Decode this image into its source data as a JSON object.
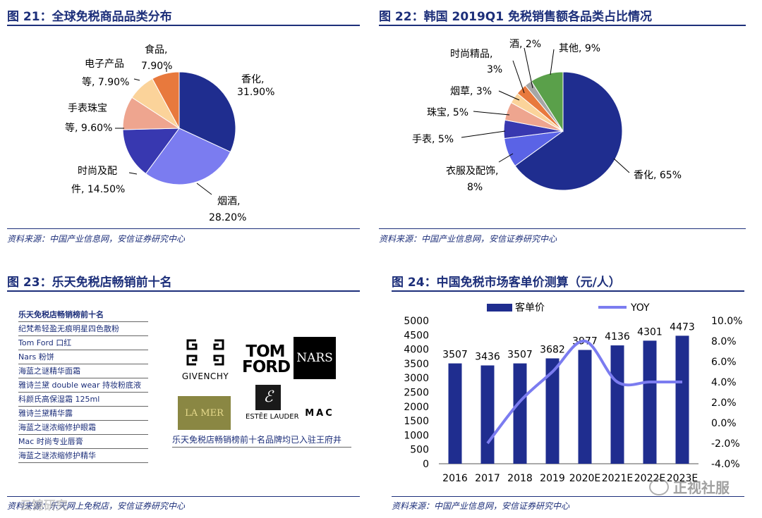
{
  "fig21": {
    "title": "图 21：全球免税商品品类分布",
    "source": "资料来源：中国产业信息网，安信证券研究中心",
    "labels": [
      "香化,",
      "31.90%",
      "烟酒,",
      "28.20%",
      "时尚及配",
      "件, 14.50%",
      "手表珠宝",
      "等, 9.60%",
      "电子产品",
      "等, 7.90%",
      "食品,",
      "7.90%"
    ]
  },
  "fig22": {
    "title": "图 22：韩国 2019Q1 免税销售额各品类占比情况",
    "source": "资料来源：中国产业信息网，安信证券研究中心",
    "labels": [
      "香化, 65%",
      "衣服及配饰,",
      "8%",
      "手表, 5%",
      "珠宝, 5%",
      "烟草, 3%",
      "时尚精品,",
      "3%",
      "酒, 2%",
      "其他, 9%"
    ]
  },
  "fig23": {
    "title": "图 23：乐天免税店畅销前十名",
    "source": "资料来源：乐天网上免税店，安信证券研究中心",
    "list_header": "乐天免税店畅销榜前十名",
    "list_items": [
      "纪梵希轻盈无痕明星四色散粉",
      "Tom Ford 口红",
      "Nars 粉饼",
      "海蓝之谜精华面霜",
      "雅诗兰黛 double wear 持妆粉底液",
      "科颜氏高保湿霜 125ml",
      "雅诗兰黛精华露",
      "海蓝之谜浓缩修护眼霜",
      "Mac 时尚专业唇膏",
      "海蓝之谜浓缩修护精华"
    ],
    "logos": {
      "givenchy": "GIVENCHY",
      "tomford_1": "TOM",
      "tomford_2": "FORD",
      "nars": "NARS",
      "lamer": "LA MER",
      "estee": "ESTĒE LAUDER",
      "mac": "MAC"
    },
    "caption": "乐天免税店畅销榜前十名品牌均已入驻王府井"
  },
  "fig24": {
    "title": "图 24：中国免税市场客单价测算（元/人）",
    "source": "资料来源：中国产业信息网，安信证券研究中心"
  },
  "watermarks": {
    "left": "云锦研究",
    "right": "正视社服"
  },
  "colors": {
    "navy": "#1d2f7a",
    "dark_blue": "#1f2d8f",
    "periwinkle": "#7b7cf0",
    "line": "#7b7cf0",
    "green": "#5aa04a"
  },
  "chart_data": [
    {
      "type": "pie",
      "categories": [
        "香化",
        "烟酒",
        "时尚及配件",
        "手表珠宝等",
        "电子产品等",
        "食品"
      ],
      "values": [
        31.9,
        28.2,
        14.5,
        9.6,
        7.9,
        7.9
      ],
      "colors": [
        "#1f2d8f",
        "#7b7cf0",
        "#3838b0",
        "#eea58f",
        "#fbd39a",
        "#e8793d"
      ],
      "title": "全球免税商品品类分布"
    },
    {
      "type": "pie",
      "categories": [
        "香化",
        "衣服及配饰",
        "手表",
        "珠宝",
        "烟草",
        "时尚精品",
        "酒",
        "其他"
      ],
      "values": [
        65,
        8,
        5,
        5,
        3,
        3,
        2,
        9
      ],
      "colors": [
        "#1f2d8f",
        "#5a63e6",
        "#3838b0",
        "#eea58f",
        "#fbd39a",
        "#e8793d",
        "#a6a6a6",
        "#5aa04a"
      ],
      "title": "韩国 2019Q1 免税销售额各品类占比情况"
    },
    {
      "type": "bar",
      "title": "中国免税市场客单价测算（元/人）",
      "categories": [
        "2016",
        "2017",
        "2018",
        "2019",
        "2020E",
        "2021E",
        "2022E",
        "2023E"
      ],
      "series": [
        {
          "name": "客单价",
          "type": "bar",
          "values": [
            3507,
            3436,
            3507,
            3682,
            3977,
            4136,
            4301,
            4473
          ],
          "color": "#1f2d8f"
        },
        {
          "name": "YOY",
          "type": "line",
          "axis": "right",
          "values": [
            null,
            -2.0,
            2.1,
            5.0,
            8.0,
            4.0,
            4.0,
            4.0
          ],
          "color": "#7b7cf0"
        }
      ],
      "y_left": {
        "min": 0,
        "max": 5000,
        "step": 500,
        "ticks": [
          "0",
          "500",
          "1000",
          "1500",
          "2000",
          "2500",
          "3000",
          "3500",
          "4000",
          "4500",
          "5000"
        ]
      },
      "y_right": {
        "min": -4,
        "max": 10,
        "step": 2,
        "ticks": [
          "-4.0%",
          "-2.0%",
          "0.0%",
          "2.0%",
          "4.0%",
          "6.0%",
          "8.0%",
          "10.0%"
        ]
      },
      "legend": "top"
    }
  ]
}
